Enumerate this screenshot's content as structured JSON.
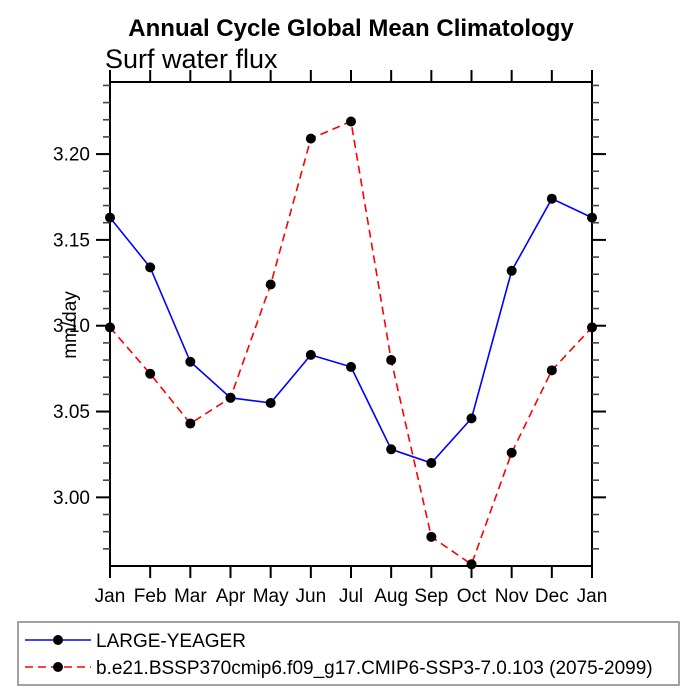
{
  "page": {
    "background": "#ffffff"
  },
  "chart_data": {
    "type": "line",
    "title": "Annual Cycle Global Mean Climatology",
    "subtitle": "Surf water flux",
    "xlabel": "",
    "ylabel": "mm/day",
    "categories": [
      "Jan",
      "Feb",
      "Mar",
      "Apr",
      "May",
      "Jun",
      "Jul",
      "Aug",
      "Sep",
      "Oct",
      "Nov",
      "Dec",
      "Jan"
    ],
    "ylim": [
      2.96,
      3.242
    ],
    "y_major_ticks": [
      3.0,
      3.05,
      3.1,
      3.15,
      3.2
    ],
    "y_major_tick_labels": [
      "3.00",
      "3.05",
      "3.10",
      "3.15",
      "3.20"
    ],
    "y_minor_step": 0.01,
    "grid": false,
    "legend_position": "bottom",
    "axis_color": "#000000",
    "marker_shape": "filled-circle",
    "marker_color": "#000000",
    "series": [
      {
        "name": "LARGE-YEAGER",
        "color": "#0000ff",
        "line_style": "solid",
        "values": [
          3.163,
          3.134,
          3.079,
          3.058,
          3.055,
          3.083,
          3.076,
          3.028,
          3.02,
          3.046,
          3.132,
          3.174,
          3.163
        ]
      },
      {
        "name": "b.e21.BSSP370cmip6.f09_g17.CMIP6-SSP3-7.0.103 (2075-2099)",
        "color": "#ff0000",
        "line_style": "dashed",
        "values": [
          3.099,
          3.072,
          3.043,
          3.058,
          3.124,
          3.209,
          3.219,
          3.08,
          2.977,
          2.961,
          3.026,
          3.074,
          3.099
        ]
      }
    ]
  }
}
